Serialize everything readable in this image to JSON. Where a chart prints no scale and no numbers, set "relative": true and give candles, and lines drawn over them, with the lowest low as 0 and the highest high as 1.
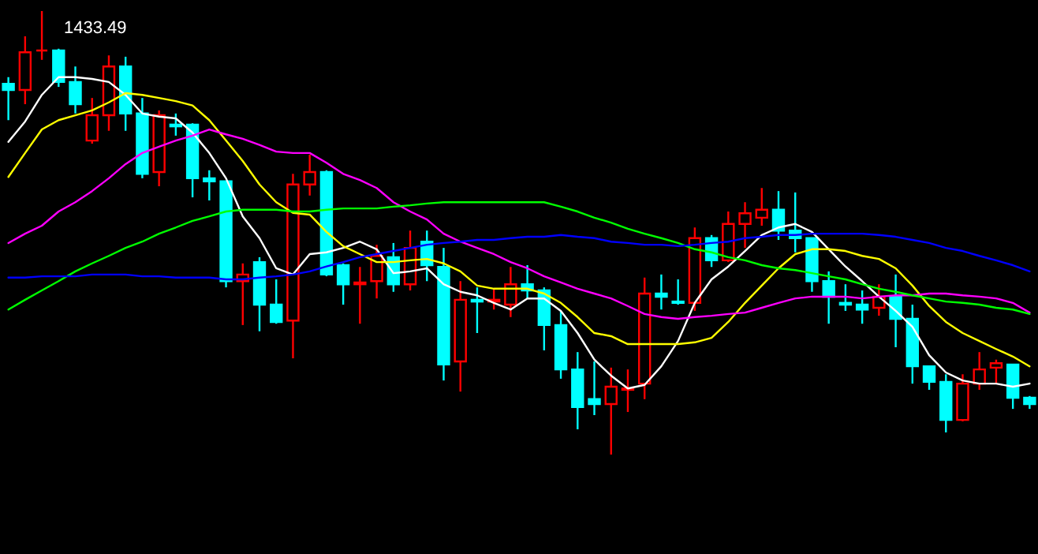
{
  "chart_data": {
    "type": "candlestick",
    "relative": true,
    "categories": [
      null,
      null,
      null,
      null,
      null,
      null,
      null,
      null,
      null,
      null,
      null,
      null,
      null,
      null,
      null,
      null,
      null,
      null,
      null,
      null,
      null,
      null,
      null,
      null,
      null,
      null,
      null,
      null,
      null,
      null,
      null,
      null,
      null,
      null,
      null,
      null,
      null,
      null,
      null,
      null,
      null,
      null,
      null,
      null,
      null,
      null,
      null,
      null,
      null,
      null,
      null,
      null,
      null,
      null,
      null,
      null,
      null,
      null,
      null,
      null,
      null,
      null
    ],
    "ohlc": [
      [
        0.836,
        0.851,
        0.754,
        0.822
      ],
      [
        0.822,
        0.943,
        0.79,
        0.907
      ],
      [
        0.911,
        1,
        0.89,
        0.911
      ],
      [
        0.911,
        0.915,
        0.829,
        0.84
      ],
      [
        0.84,
        0.875,
        0.769,
        0.79
      ],
      [
        0.708,
        0.804,
        0.701,
        0.765
      ],
      [
        0.765,
        0.9,
        0.73,
        0.875
      ],
      [
        0.875,
        0.897,
        0.73,
        0.769
      ],
      [
        0.769,
        0.804,
        0.623,
        0.633
      ],
      [
        0.637,
        0.776,
        0.605,
        0.765
      ],
      [
        0.744,
        0.769,
        0.719,
        0.74
      ],
      [
        0.744,
        0.747,
        0.58,
        0.623
      ],
      [
        0.623,
        0.641,
        0.573,
        0.616
      ],
      [
        0.616,
        0.616,
        0.377,
        0.391
      ],
      [
        0.391,
        0.431,
        0.292,
        0.406
      ],
      [
        0.434,
        0.445,
        0.278,
        0.338
      ],
      [
        0.338,
        0.395,
        0.295,
        0.299
      ],
      [
        0.302,
        0.633,
        0.217,
        0.609
      ],
      [
        0.609,
        0.676,
        0.584,
        0.637
      ],
      [
        0.637,
        0.641,
        0.402,
        0.406
      ],
      [
        0.427,
        0.431,
        0.338,
        0.384
      ],
      [
        0.384,
        0.423,
        0.295,
        0.388
      ],
      [
        0.391,
        0.473,
        0.352,
        0.448
      ],
      [
        0.445,
        0.477,
        0.367,
        0.384
      ],
      [
        0.384,
        0.505,
        0.37,
        0.466
      ],
      [
        0.48,
        0.505,
        0.391,
        0.427
      ],
      [
        0.423,
        0.466,
        0.167,
        0.203
      ],
      [
        0.21,
        0.391,
        0.142,
        0.349
      ],
      [
        0.349,
        0.377,
        0.274,
        0.345
      ],
      [
        0.345,
        0.374,
        0.327,
        0.349
      ],
      [
        0.338,
        0.423,
        0.31,
        0.384
      ],
      [
        0.384,
        0.427,
        0.352,
        0.37
      ],
      [
        0.37,
        0.377,
        0.235,
        0.292
      ],
      [
        0.292,
        0.324,
        0.171,
        0.192
      ],
      [
        0.192,
        0.231,
        0.057,
        0.107
      ],
      [
        0.125,
        0.21,
        0.089,
        0.114
      ],
      [
        0.114,
        0.196,
        0,
        0.153
      ],
      [
        0.146,
        0.192,
        0.096,
        0.149
      ],
      [
        0.16,
        0.399,
        0.125,
        0.363
      ],
      [
        0.363,
        0.406,
        0.327,
        0.356
      ],
      [
        0.345,
        0.395,
        0.338,
        0.342
      ],
      [
        0.342,
        0.512,
        0.324,
        0.488
      ],
      [
        0.488,
        0.495,
        0.423,
        0.438
      ],
      [
        0.438,
        0.548,
        0.434,
        0.52
      ],
      [
        0.52,
        0.569,
        0.466,
        0.544
      ],
      [
        0.534,
        0.601,
        0.516,
        0.552
      ],
      [
        0.552,
        0.594,
        0.484,
        0.505
      ],
      [
        0.505,
        0.591,
        0.456,
        0.488
      ],
      [
        0.488,
        0.488,
        0.367,
        0.391
      ],
      [
        0.391,
        0.413,
        0.295,
        0.356
      ],
      [
        0.342,
        0.384,
        0.324,
        0.338
      ],
      [
        0.338,
        0.37,
        0.295,
        0.327
      ],
      [
        0.331,
        0.384,
        0.313,
        0.356
      ],
      [
        0.356,
        0.406,
        0.242,
        0.306
      ],
      [
        0.306,
        0.338,
        0.16,
        0.199
      ],
      [
        0.199,
        0.199,
        0.146,
        0.164
      ],
      [
        0.164,
        0.181,
        0.05,
        0.078
      ],
      [
        0.078,
        0.181,
        0.075,
        0.16
      ],
      [
        0.16,
        0.231,
        0.146,
        0.192
      ],
      [
        0.196,
        0.214,
        0.16,
        0.206
      ],
      [
        0.203,
        0.203,
        0.103,
        0.128
      ],
      [
        0.128,
        0.132,
        0.103,
        0.114
      ]
    ],
    "colors": [
      "#00ffff",
      "#ff0000",
      "#ff0000",
      "#00ffff",
      "#00ffff",
      "#ff0000",
      "#ff0000",
      "#00ffff",
      "#00ffff",
      "#ff0000",
      "#00ffff",
      "#00ffff",
      "#00ffff",
      "#00ffff",
      "#ff0000",
      "#00ffff",
      "#00ffff",
      "#ff0000",
      "#ff0000",
      "#00ffff",
      "#00ffff",
      "#ff0000",
      "#ff0000",
      "#00ffff",
      "#ff0000",
      "#00ffff",
      "#00ffff",
      "#ff0000",
      "#00ffff",
      "#ff0000",
      "#ff0000",
      "#00ffff",
      "#00ffff",
      "#00ffff",
      "#00ffff",
      "#00ffff",
      "#ff0000",
      "#ff0000",
      "#ff0000",
      "#00ffff",
      "#00ffff",
      "#ff0000",
      "#00ffff",
      "#ff0000",
      "#ff0000",
      "#ff0000",
      "#00ffff",
      "#00ffff",
      "#00ffff",
      "#00ffff",
      "#00ffff",
      "#00ffff",
      "#ff0000",
      "#00ffff",
      "#00ffff",
      "#00ffff",
      "#00ffff",
      "#ff0000",
      "#ff0000",
      "#ff0000",
      "#00ffff",
      "#00ffff"
    ],
    "series": [
      {
        "type": "line",
        "color": "#ffffff",
        "values": [
          0.705,
          0.751,
          0.811,
          0.851,
          0.851,
          0.847,
          0.84,
          0.811,
          0.769,
          0.762,
          0.758,
          0.726,
          0.68,
          0.623,
          0.537,
          0.488,
          0.42,
          0.406,
          0.452,
          0.456,
          0.466,
          0.48,
          0.463,
          0.409,
          0.413,
          0.42,
          0.384,
          0.367,
          0.359,
          0.342,
          0.327,
          0.352,
          0.352,
          0.324,
          0.274,
          0.214,
          0.178,
          0.149,
          0.157,
          0.199,
          0.256,
          0.342,
          0.395,
          0.424,
          0.459,
          0.495,
          0.512,
          0.52,
          0.502,
          0.463,
          0.424,
          0.391,
          0.356,
          0.324,
          0.288,
          0.224,
          0.185,
          0.167,
          0.16,
          0.16,
          0.153,
          0.16
        ]
      },
      {
        "type": "line",
        "color": "#ffff00",
        "values": [
          0.626,
          0.68,
          0.733,
          0.754,
          0.765,
          0.776,
          0.794,
          0.815,
          0.811,
          0.804,
          0.797,
          0.787,
          0.754,
          0.708,
          0.662,
          0.609,
          0.569,
          0.545,
          0.541,
          0.502,
          0.47,
          0.452,
          0.434,
          0.434,
          0.438,
          0.441,
          0.431,
          0.413,
          0.381,
          0.374,
          0.374,
          0.374,
          0.363,
          0.342,
          0.31,
          0.274,
          0.267,
          0.249,
          0.249,
          0.249,
          0.249,
          0.253,
          0.263,
          0.299,
          0.342,
          0.381,
          0.42,
          0.452,
          0.463,
          0.463,
          0.459,
          0.448,
          0.441,
          0.42,
          0.381,
          0.335,
          0.299,
          0.274,
          0.256,
          0.238,
          0.221,
          0.199
        ]
      },
      {
        "type": "line",
        "color": "#ff00ff",
        "values": [
          0.477,
          0.498,
          0.516,
          0.548,
          0.569,
          0.594,
          0.623,
          0.655,
          0.68,
          0.694,
          0.708,
          0.719,
          0.733,
          0.722,
          0.712,
          0.698,
          0.683,
          0.68,
          0.68,
          0.658,
          0.633,
          0.619,
          0.601,
          0.569,
          0.548,
          0.53,
          0.498,
          0.48,
          0.466,
          0.452,
          0.434,
          0.42,
          0.402,
          0.388,
          0.374,
          0.363,
          0.352,
          0.335,
          0.317,
          0.31,
          0.306,
          0.31,
          0.313,
          0.317,
          0.32,
          0.331,
          0.342,
          0.352,
          0.356,
          0.356,
          0.356,
          0.352,
          0.356,
          0.359,
          0.359,
          0.363,
          0.363,
          0.359,
          0.356,
          0.352,
          0.342,
          0.32
        ]
      },
      {
        "type": "line",
        "color": "#00ff00",
        "values": [
          0.327,
          0.349,
          0.37,
          0.391,
          0.413,
          0.431,
          0.448,
          0.466,
          0.48,
          0.498,
          0.512,
          0.527,
          0.537,
          0.548,
          0.552,
          0.552,
          0.552,
          0.548,
          0.548,
          0.552,
          0.555,
          0.555,
          0.555,
          0.559,
          0.562,
          0.566,
          0.569,
          0.569,
          0.569,
          0.569,
          0.569,
          0.569,
          0.569,
          0.559,
          0.548,
          0.534,
          0.523,
          0.509,
          0.498,
          0.488,
          0.477,
          0.463,
          0.456,
          0.445,
          0.438,
          0.427,
          0.42,
          0.416,
          0.409,
          0.402,
          0.395,
          0.384,
          0.374,
          0.367,
          0.359,
          0.352,
          0.345,
          0.342,
          0.338,
          0.331,
          0.327,
          0.317
        ]
      },
      {
        "type": "line",
        "color": "#0000ff",
        "values": [
          0.399,
          0.399,
          0.402,
          0.402,
          0.402,
          0.406,
          0.406,
          0.406,
          0.402,
          0.402,
          0.399,
          0.399,
          0.399,
          0.395,
          0.395,
          0.399,
          0.402,
          0.406,
          0.413,
          0.424,
          0.434,
          0.445,
          0.452,
          0.459,
          0.466,
          0.473,
          0.477,
          0.48,
          0.484,
          0.484,
          0.488,
          0.491,
          0.491,
          0.495,
          0.491,
          0.488,
          0.48,
          0.477,
          0.473,
          0.473,
          0.47,
          0.473,
          0.477,
          0.48,
          0.488,
          0.491,
          0.495,
          0.495,
          0.498,
          0.498,
          0.498,
          0.498,
          0.495,
          0.491,
          0.484,
          0.477,
          0.466,
          0.459,
          0.448,
          0.438,
          0.427,
          0.413
        ]
      }
    ],
    "annotations": [
      "1433.49"
    ]
  }
}
